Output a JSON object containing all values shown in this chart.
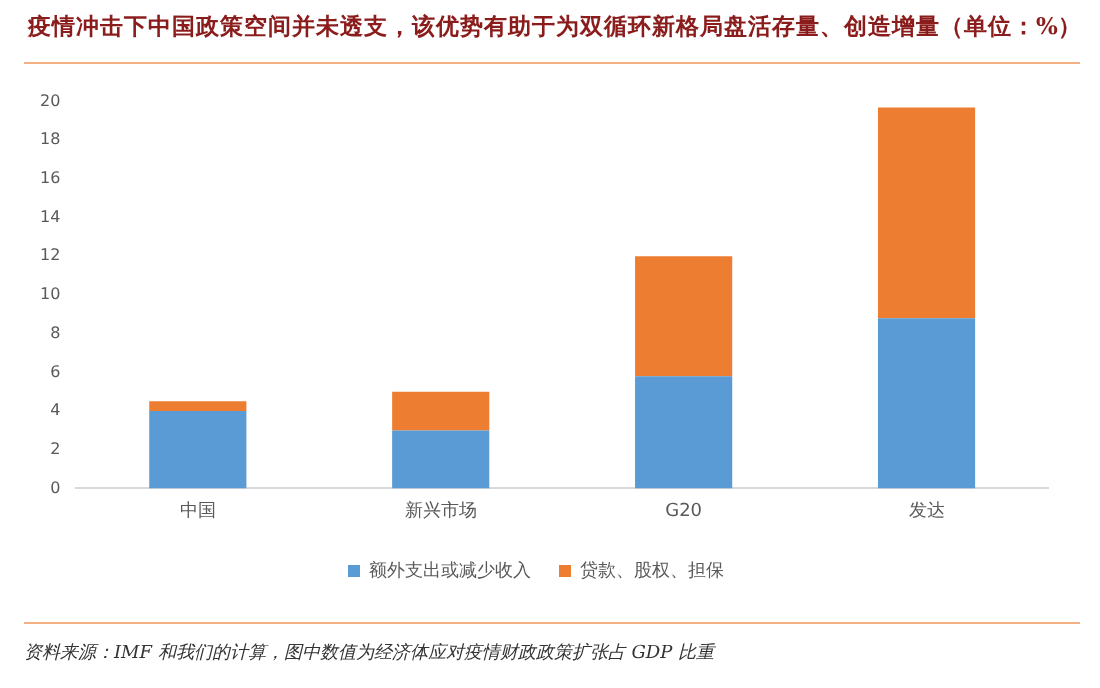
{
  "chart_data": {
    "type": "bar",
    "title": "疫情冲击下中国政策空间并未透支，该优势有助于为双循环新格局盘活存量、创造增量（单位：%）",
    "categories": [
      "中国",
      "新兴市场",
      "G20",
      "发达"
    ],
    "series": [
      {
        "name": "额外支出或减少收入",
        "color": "#5b9bd5",
        "values": [
          4.0,
          3.0,
          5.8,
          8.8
        ]
      },
      {
        "name": "贷款、股权、担保",
        "color": "#ed7d31",
        "values": [
          0.5,
          2.0,
          6.2,
          10.9
        ]
      }
    ],
    "stacked": true,
    "ylim": [
      0,
      20
    ],
    "yticks": [
      0,
      2,
      4,
      6,
      8,
      10,
      12,
      14,
      16,
      18,
      20
    ],
    "grid": false,
    "legend": "bottom",
    "annotations": [
      "资料来源：IMF 和我们的计算，图中数值为经济体应对疫情财政政策扩张占 GDP 比重"
    ]
  }
}
